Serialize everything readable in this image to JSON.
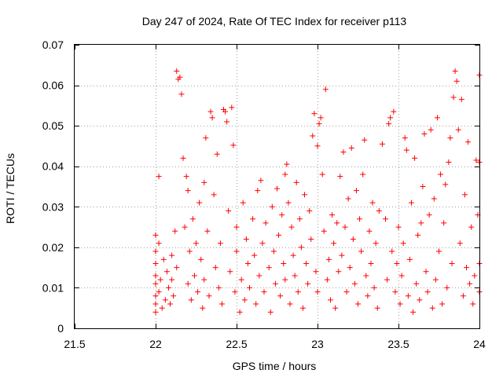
{
  "chart_data": {
    "type": "scatter",
    "title": "Day 247 of 2024, Rate Of TEC Index for receiver p113",
    "xlabel": "GPS time / hours",
    "ylabel": "ROTI / TECUs",
    "xlim": [
      21.5,
      24
    ],
    "ylim": [
      0,
      0.07
    ],
    "xticks": [
      21.5,
      22,
      22.5,
      23,
      23.5,
      24
    ],
    "xtick_labels": [
      "21.5",
      "22",
      "22.5",
      "23",
      "23.5",
      "24"
    ],
    "yticks": [
      0,
      0.01,
      0.02,
      0.03,
      0.04,
      0.05,
      0.06,
      0.07
    ],
    "ytick_labels": [
      "0",
      "0.01",
      "0.02",
      "0.03",
      "0.04",
      "0.05",
      "0.06",
      "0.07"
    ],
    "grid": true,
    "marker": "+",
    "color": "#ff0000",
    "series": [
      {
        "name": "ROTI",
        "points": [
          [
            22.0,
            0.004
          ],
          [
            22.0,
            0.006
          ],
          [
            22.0,
            0.008
          ],
          [
            22.0,
            0.011
          ],
          [
            22.0,
            0.013
          ],
          [
            22.0,
            0.016
          ],
          [
            22.0,
            0.019
          ],
          [
            22.0,
            0.023
          ],
          [
            22.02,
            0.0375
          ],
          [
            22.02,
            0.021
          ],
          [
            22.02,
            0.009
          ],
          [
            22.03,
            0.012
          ],
          [
            22.04,
            0.005
          ],
          [
            22.05,
            0.017
          ],
          [
            22.06,
            0.007
          ],
          [
            22.07,
            0.014
          ],
          [
            22.08,
            0.01
          ],
          [
            22.09,
            0.006
          ],
          [
            22.1,
            0.018
          ],
          [
            22.1,
            0.012
          ],
          [
            22.11,
            0.008
          ],
          [
            22.12,
            0.024
          ],
          [
            22.13,
            0.015
          ],
          [
            22.13,
            0.0635
          ],
          [
            22.14,
            0.0615
          ],
          [
            22.15,
            0.062
          ],
          [
            22.16,
            0.0578
          ],
          [
            22.17,
            0.042
          ],
          [
            22.18,
            0.025
          ],
          [
            22.19,
            0.0375
          ],
          [
            22.2,
            0.034
          ],
          [
            22.2,
            0.011
          ],
          [
            22.21,
            0.019
          ],
          [
            22.22,
            0.007
          ],
          [
            22.23,
            0.027
          ],
          [
            22.24,
            0.013
          ],
          [
            22.25,
            0.021
          ],
          [
            22.26,
            0.009
          ],
          [
            22.27,
            0.031
          ],
          [
            22.28,
            0.017
          ],
          [
            22.29,
            0.005
          ],
          [
            22.3,
            0.036
          ],
          [
            22.3,
            0.012
          ],
          [
            22.31,
            0.047
          ],
          [
            22.32,
            0.024
          ],
          [
            22.33,
            0.008
          ],
          [
            22.34,
            0.0535
          ],
          [
            22.35,
            0.052
          ],
          [
            22.36,
            0.033
          ],
          [
            22.37,
            0.015
          ],
          [
            22.38,
            0.043
          ],
          [
            22.39,
            0.01
          ],
          [
            22.4,
            0.021
          ],
          [
            22.41,
            0.006
          ],
          [
            22.42,
            0.054
          ],
          [
            22.43,
            0.0535
          ],
          [
            22.44,
            0.051
          ],
          [
            22.45,
            0.029
          ],
          [
            22.46,
            0.014
          ],
          [
            22.47,
            0.0545
          ],
          [
            22.48,
            0.0452
          ],
          [
            22.49,
            0.009
          ],
          [
            22.5,
            0.019
          ],
          [
            22.5,
            0.025
          ],
          [
            22.52,
            0.004
          ],
          [
            22.53,
            0.012
          ],
          [
            22.54,
            0.031
          ],
          [
            22.55,
            0.007
          ],
          [
            22.56,
            0.022
          ],
          [
            22.57,
            0.016
          ],
          [
            22.58,
            0.01
          ],
          [
            22.6,
            0.027
          ],
          [
            22.61,
            0.018
          ],
          [
            22.62,
            0.006
          ],
          [
            22.63,
            0.034
          ],
          [
            22.64,
            0.013
          ],
          [
            22.65,
            0.0365
          ],
          [
            22.66,
            0.021
          ],
          [
            22.67,
            0.009
          ],
          [
            22.68,
            0.026
          ],
          [
            22.7,
            0.015
          ],
          [
            22.71,
            0.004
          ],
          [
            22.72,
            0.03
          ],
          [
            22.73,
            0.019
          ],
          [
            22.74,
            0.011
          ],
          [
            22.75,
            0.0345
          ],
          [
            22.76,
            0.023
          ],
          [
            22.77,
            0.008
          ],
          [
            22.78,
            0.028
          ],
          [
            22.79,
            0.016
          ],
          [
            22.8,
            0.038
          ],
          [
            22.8,
            0.012
          ],
          [
            22.81,
            0.0405
          ],
          [
            22.82,
            0.031
          ],
          [
            22.83,
            0.006
          ],
          [
            22.84,
            0.025
          ],
          [
            22.85,
            0.018
          ],
          [
            22.86,
            0.013
          ],
          [
            22.87,
            0.036
          ],
          [
            22.88,
            0.009
          ],
          [
            22.89,
            0.027
          ],
          [
            22.9,
            0.02
          ],
          [
            22.91,
            0.005
          ],
          [
            22.92,
            0.033
          ],
          [
            22.93,
            0.016
          ],
          [
            22.94,
            0.011
          ],
          [
            22.95,
            0.029
          ],
          [
            22.96,
            0.022
          ],
          [
            22.97,
            0.0475
          ],
          [
            22.98,
            0.053
          ],
          [
            22.99,
            0.014
          ],
          [
            23.0,
            0.045
          ],
          [
            23.0,
            0.009
          ],
          [
            23.01,
            0.0505
          ],
          [
            23.02,
            0.052
          ],
          [
            23.03,
            0.038
          ],
          [
            23.04,
            0.024
          ],
          [
            23.05,
            0.059
          ],
          [
            23.06,
            0.012
          ],
          [
            23.07,
            0.017
          ],
          [
            23.08,
            0.007
          ],
          [
            23.09,
            0.028
          ],
          [
            23.1,
            0.021
          ],
          [
            23.11,
            0.005
          ],
          [
            23.12,
            0.026
          ],
          [
            23.13,
            0.014
          ],
          [
            23.14,
            0.0375
          ],
          [
            23.15,
            0.018
          ],
          [
            23.16,
            0.0435
          ],
          [
            23.17,
            0.025
          ],
          [
            23.18,
            0.009
          ],
          [
            23.19,
            0.032
          ],
          [
            23.2,
            0.015
          ],
          [
            23.21,
            0.0445
          ],
          [
            23.22,
            0.022
          ],
          [
            23.23,
            0.011
          ],
          [
            23.24,
            0.034
          ],
          [
            23.25,
            0.006
          ],
          [
            23.26,
            0.027
          ],
          [
            23.27,
            0.019
          ],
          [
            23.28,
            0.038
          ],
          [
            23.29,
            0.0465
          ],
          [
            23.3,
            0.013
          ],
          [
            23.31,
            0.008
          ],
          [
            23.32,
            0.024
          ],
          [
            23.33,
            0.016
          ],
          [
            23.34,
            0.031
          ],
          [
            23.35,
            0.01
          ],
          [
            23.36,
            0.021
          ],
          [
            23.37,
            0.005
          ],
          [
            23.38,
            0.029
          ],
          [
            23.4,
            0.0455
          ],
          [
            23.42,
            0.027
          ],
          [
            23.43,
            0.012
          ],
          [
            23.44,
            0.0505
          ],
          [
            23.45,
            0.052
          ],
          [
            23.46,
            0.019
          ],
          [
            23.47,
            0.0535
          ],
          [
            23.48,
            0.009
          ],
          [
            23.49,
            0.016
          ],
          [
            23.5,
            0.025
          ],
          [
            23.51,
            0.006
          ],
          [
            23.52,
            0.013
          ],
          [
            23.53,
            0.021
          ],
          [
            23.54,
            0.047
          ],
          [
            23.55,
            0.044
          ],
          [
            23.56,
            0.008
          ],
          [
            23.57,
            0.017
          ],
          [
            23.58,
            0.031
          ],
          [
            23.59,
            0.004
          ],
          [
            23.6,
            0.042
          ],
          [
            23.61,
            0.011
          ],
          [
            23.62,
            0.023
          ],
          [
            23.63,
            0.007
          ],
          [
            23.64,
            0.026
          ],
          [
            23.65,
            0.035
          ],
          [
            23.66,
            0.048
          ],
          [
            23.67,
            0.014
          ],
          [
            23.68,
            0.009
          ],
          [
            23.69,
            0.028
          ],
          [
            23.7,
            0.049
          ],
          [
            23.71,
            0.005
          ],
          [
            23.72,
            0.032
          ],
          [
            23.73,
            0.012
          ],
          [
            23.74,
            0.052
          ],
          [
            23.75,
            0.019
          ],
          [
            23.76,
            0.038
          ],
          [
            23.77,
            0.006
          ],
          [
            23.78,
            0.026
          ],
          [
            23.79,
            0.0355
          ],
          [
            23.8,
            0.01
          ],
          [
            23.81,
            0.041
          ],
          [
            23.82,
            0.047
          ],
          [
            23.83,
            0.016
          ],
          [
            23.84,
            0.057
          ],
          [
            23.85,
            0.0635
          ],
          [
            23.86,
            0.061
          ],
          [
            23.87,
            0.049
          ],
          [
            23.88,
            0.021
          ],
          [
            23.89,
            0.0565
          ],
          [
            23.9,
            0.008
          ],
          [
            23.91,
            0.033
          ],
          [
            23.92,
            0.015
          ],
          [
            23.93,
            0.046
          ],
          [
            23.94,
            0.011
          ],
          [
            23.95,
            0.025
          ],
          [
            23.96,
            0.006
          ],
          [
            23.97,
            0.013
          ],
          [
            23.98,
            0.0415
          ],
          [
            23.99,
            0.028
          ],
          [
            24.0,
            0.0625
          ],
          [
            24.0,
            0.041
          ],
          [
            24.0,
            0.016
          ],
          [
            24.0,
            0.009
          ]
        ]
      }
    ]
  }
}
